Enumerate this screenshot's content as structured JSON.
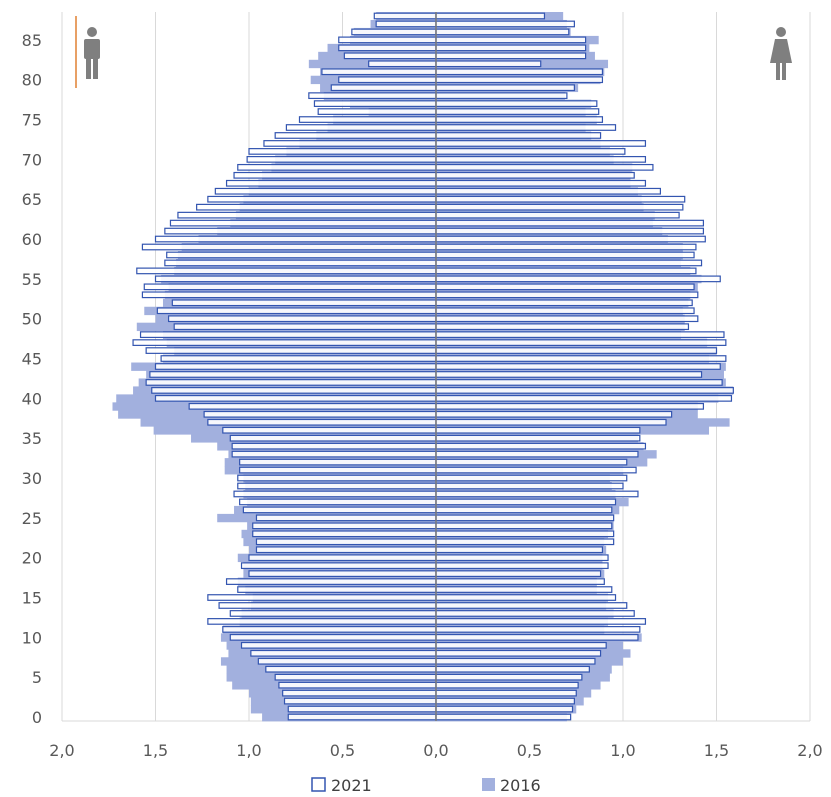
{
  "chart_data": {
    "type": "bar",
    "orientation": "horizontal",
    "layout": "population-pyramid",
    "left_side_label": "male",
    "right_side_label": "female",
    "xlim": [
      -2,
      2
    ],
    "ylim": [
      0,
      89
    ],
    "x_ticks": [
      -2,
      -1.5,
      -1,
      -0.5,
      0,
      0.5,
      1,
      1.5,
      2
    ],
    "x_tick_labels": [
      "2,0",
      "1,5",
      "1,0",
      "0,5",
      "0,0",
      "0,5",
      "1,0",
      "1,5",
      "2,0"
    ],
    "y_ticks": [
      0,
      5,
      10,
      15,
      20,
      25,
      30,
      35,
      40,
      45,
      50,
      55,
      60,
      65,
      70,
      75,
      80,
      85
    ],
    "y_tick_labels": [
      "0",
      "5",
      "10",
      "15",
      "20",
      "25",
      "30",
      "35",
      "40",
      "45",
      "50",
      "55",
      "60",
      "65",
      "70",
      "75",
      "80",
      "85"
    ],
    "grid": {
      "vertical": true,
      "horizontal": false
    },
    "legend": {
      "position": "bottom"
    },
    "colors": {
      "s2021_fill": "#ffffff",
      "s2021_stroke": "#3355b0",
      "s2016_fill": "#a2b0de",
      "gridline": "#d9d9d9",
      "center_line": "#7a7a7a",
      "icon": "#7f7f7f",
      "accent_line": "#e8a065"
    },
    "ages": [
      0,
      1,
      2,
      3,
      4,
      5,
      6,
      7,
      8,
      9,
      10,
      11,
      12,
      13,
      14,
      15,
      16,
      17,
      18,
      19,
      20,
      21,
      22,
      23,
      24,
      25,
      26,
      27,
      28,
      29,
      30,
      31,
      32,
      33,
      34,
      35,
      36,
      37,
      38,
      39,
      40,
      41,
      42,
      43,
      44,
      45,
      46,
      47,
      48,
      49,
      50,
      51,
      52,
      53,
      54,
      55,
      56,
      57,
      58,
      59,
      60,
      61,
      62,
      63,
      64,
      65,
      66,
      67,
      68,
      69,
      70,
      71,
      72,
      73,
      74,
      75,
      76,
      77,
      78,
      79,
      80,
      81,
      82,
      83,
      84,
      85,
      86,
      87,
      88
    ],
    "series": [
      {
        "name": "2021",
        "male": [
          0.79,
          0.79,
          0.81,
          0.82,
          0.84,
          0.86,
          0.91,
          0.95,
          0.99,
          1.04,
          1.1,
          1.14,
          1.22,
          1.1,
          1.16,
          1.22,
          1.06,
          1.12,
          1.0,
          1.04,
          1.0,
          0.96,
          0.96,
          0.98,
          0.98,
          0.96,
          1.03,
          1.05,
          1.08,
          1.06,
          1.06,
          1.05,
          1.05,
          1.09,
          1.09,
          1.1,
          1.14,
          1.22,
          1.24,
          1.32,
          1.5,
          1.52,
          1.55,
          1.53,
          1.5,
          1.47,
          1.55,
          1.62,
          1.58,
          1.4,
          1.43,
          1.49,
          1.41,
          1.57,
          1.56,
          1.5,
          1.6,
          1.45,
          1.44,
          1.57,
          1.5,
          1.45,
          1.42,
          1.38,
          1.28,
          1.22,
          1.18,
          1.12,
          1.08,
          1.06,
          1.01,
          1.0,
          0.92,
          0.86,
          0.8,
          0.73,
          0.63,
          0.65,
          0.68,
          0.56,
          0.52,
          0.61,
          0.36,
          0.49,
          0.52,
          0.52,
          0.45,
          0.32,
          0.33
        ],
        "female": [
          0.72,
          0.73,
          0.74,
          0.75,
          0.76,
          0.78,
          0.82,
          0.85,
          0.88,
          0.91,
          1.08,
          1.09,
          1.12,
          1.06,
          1.02,
          0.96,
          0.94,
          0.9,
          0.88,
          0.92,
          0.92,
          0.89,
          0.95,
          0.95,
          0.94,
          0.95,
          0.94,
          0.96,
          1.08,
          1.0,
          1.02,
          1.07,
          1.02,
          1.08,
          1.12,
          1.09,
          1.09,
          1.23,
          1.26,
          1.43,
          1.58,
          1.59,
          1.53,
          1.42,
          1.52,
          1.55,
          1.5,
          1.55,
          1.54,
          1.35,
          1.4,
          1.38,
          1.37,
          1.4,
          1.38,
          1.52,
          1.39,
          1.42,
          1.38,
          1.39,
          1.44,
          1.43,
          1.43,
          1.3,
          1.32,
          1.33,
          1.2,
          1.12,
          1.06,
          1.16,
          1.12,
          1.01,
          1.12,
          0.88,
          0.96,
          0.89,
          0.87,
          0.86,
          0.7,
          0.74,
          0.89,
          0.89,
          0.56,
          0.8,
          0.8,
          0.8,
          0.71,
          0.74,
          0.58
        ]
      },
      {
        "name": "2016",
        "male": [
          0.93,
          0.99,
          0.99,
          1.0,
          1.09,
          1.12,
          1.12,
          1.15,
          1.11,
          1.12,
          1.15,
          1.14,
          1.05,
          1.04,
          0.99,
          0.98,
          1.02,
          1.06,
          1.03,
          1.03,
          1.06,
          1.0,
          1.03,
          1.04,
          1.01,
          1.17,
          1.08,
          1.01,
          1.03,
          1.02,
          1.03,
          1.13,
          1.13,
          1.11,
          1.17,
          1.31,
          1.51,
          1.58,
          1.7,
          1.73,
          1.71,
          1.62,
          1.59,
          1.55,
          1.63,
          1.46,
          1.4,
          1.44,
          1.46,
          1.6,
          1.5,
          1.56,
          1.46,
          1.45,
          1.43,
          1.47,
          1.4,
          1.39,
          1.38,
          1.36,
          1.27,
          1.17,
          1.1,
          1.07,
          1.05,
          1.03,
          1.0,
          0.95,
          0.93,
          0.88,
          0.86,
          0.8,
          0.73,
          0.64,
          0.58,
          0.55,
          0.36,
          0.46,
          0.6,
          0.62,
          0.67,
          0.62,
          0.68,
          0.63,
          0.58,
          0.46,
          0.44,
          0.35,
          0.32
        ],
        "female": [
          0.7,
          0.75,
          0.79,
          0.83,
          0.88,
          0.93,
          0.94,
          1.0,
          1.04,
          1.0,
          1.1,
          0.9,
          0.92,
          0.95,
          0.91,
          0.92,
          0.86,
          0.86,
          0.9,
          0.89,
          0.89,
          0.91,
          0.9,
          0.92,
          0.95,
          0.95,
          0.98,
          1.03,
          0.96,
          0.94,
          0.93,
          1.0,
          1.13,
          1.18,
          1.11,
          1.08,
          1.46,
          1.57,
          1.4,
          1.4,
          1.51,
          1.59,
          1.55,
          1.54,
          1.55,
          1.46,
          1.5,
          1.45,
          1.31,
          1.33,
          1.33,
          1.32,
          1.35,
          1.36,
          1.4,
          1.42,
          1.36,
          1.31,
          1.32,
          1.32,
          1.24,
          1.21,
          1.16,
          1.17,
          1.11,
          1.1,
          1.08,
          1.04,
          1.04,
          1.05,
          0.95,
          0.93,
          0.88,
          0.83,
          0.8,
          0.86,
          0.8,
          0.83,
          0.69,
          0.76,
          0.88,
          0.9,
          0.92,
          0.85,
          0.82,
          0.87,
          0.72,
          0.7,
          0.68
        ]
      }
    ]
  }
}
